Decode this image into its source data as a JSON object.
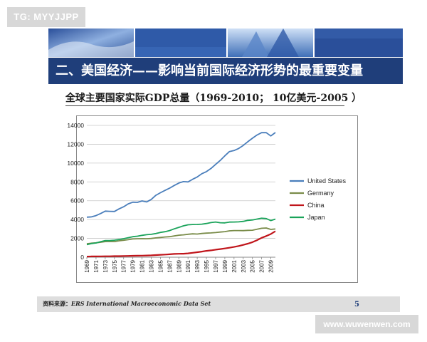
{
  "watermark_top": "TG: MYYJJPP",
  "watermark_bottom": "www.wuwenwen.com",
  "slide": {
    "title": "二、美国经济——影响当前国际经济形势的最重要变量",
    "subtitle": "全球主要国家实际GDP总量（1969-2010； 10亿美元-2005 ）",
    "source_label": "资料来源：",
    "source_text": "ERS International Macroeconomic Data Set",
    "page_number": "5"
  },
  "colors": {
    "title_bar": "#1f3e7a",
    "united_states": "#4a7ebb",
    "germany": "#7a8c4a",
    "china": "#c0151b",
    "japan": "#1aa35a"
  },
  "chart_data": {
    "type": "line",
    "title": "",
    "xlabel": "",
    "ylabel": "",
    "ylim": [
      0,
      14000
    ],
    "yticks": [
      0,
      2000,
      4000,
      6000,
      8000,
      10000,
      12000,
      14000
    ],
    "xticks": [
      "1969",
      "1971",
      "1973",
      "1975",
      "1977",
      "1979",
      "1981",
      "1983",
      "1985",
      "1987",
      "1989",
      "1991",
      "1993",
      "1995",
      "1997",
      "1999",
      "2001",
      "2003",
      "2005",
      "2007",
      "2009"
    ],
    "x": [
      1969,
      1970,
      1971,
      1972,
      1973,
      1974,
      1975,
      1976,
      1977,
      1978,
      1979,
      1980,
      1981,
      1982,
      1983,
      1984,
      1985,
      1986,
      1987,
      1988,
      1989,
      1990,
      1991,
      1992,
      1993,
      1994,
      1995,
      1996,
      1997,
      1998,
      1999,
      2000,
      2001,
      2002,
      2003,
      2004,
      2005,
      2006,
      2007,
      2008,
      2009,
      2010
    ],
    "grid": true,
    "legend_position": "right",
    "series": [
      {
        "name": "United States",
        "color": "#4a7ebb",
        "values": [
          4250,
          4280,
          4420,
          4640,
          4900,
          4870,
          4860,
          5130,
          5360,
          5670,
          5840,
          5830,
          5980,
          5870,
          6140,
          6580,
          6850,
          7100,
          7330,
          7620,
          7880,
          8030,
          8000,
          8280,
          8520,
          8870,
          9090,
          9430,
          9860,
          10280,
          10770,
          11220,
          11330,
          11550,
          11870,
          12270,
          12640,
          12980,
          13230,
          13230,
          12880,
          13240
        ]
      },
      {
        "name": "Germany",
        "color": "#7a8c4a",
        "values": [
          1420,
          1490,
          1530,
          1590,
          1660,
          1680,
          1660,
          1740,
          1800,
          1860,
          1940,
          1960,
          1970,
          1960,
          1990,
          2050,
          2100,
          2150,
          2180,
          2260,
          2340,
          2380,
          2440,
          2480,
          2460,
          2520,
          2560,
          2580,
          2620,
          2670,
          2720,
          2800,
          2830,
          2830,
          2820,
          2850,
          2870,
          2970,
          3070,
          3100,
          2950,
          3000
        ]
      },
      {
        "name": "China",
        "color": "#c0151b",
        "values": [
          70,
          80,
          85,
          90,
          95,
          100,
          110,
          115,
          125,
          140,
          150,
          160,
          170,
          185,
          200,
          230,
          260,
          280,
          310,
          350,
          360,
          370,
          410,
          470,
          530,
          600,
          670,
          730,
          800,
          860,
          930,
          1010,
          1090,
          1190,
          1310,
          1440,
          1600,
          1810,
          2060,
          2250,
          2460,
          2760
        ]
      },
      {
        "name": "Japan",
        "color": "#1aa35a",
        "values": [
          1330,
          1450,
          1510,
          1640,
          1770,
          1760,
          1810,
          1880,
          1970,
          2070,
          2180,
          2230,
          2320,
          2390,
          2430,
          2520,
          2630,
          2710,
          2830,
          3010,
          3170,
          3330,
          3440,
          3470,
          3480,
          3510,
          3580,
          3680,
          3740,
          3660,
          3650,
          3730,
          3740,
          3750,
          3810,
          3910,
          3960,
          4050,
          4140,
          4100,
          3890,
          4050
        ]
      }
    ]
  }
}
